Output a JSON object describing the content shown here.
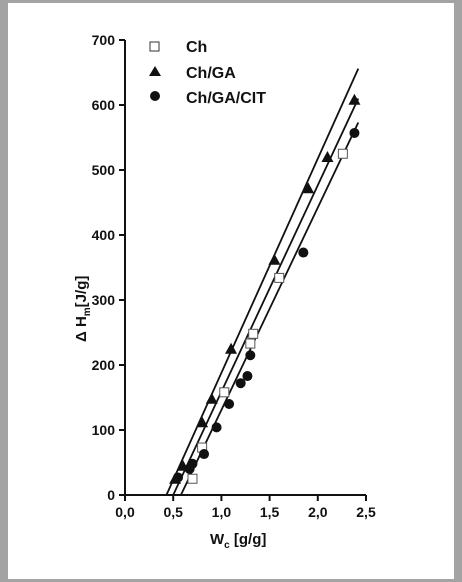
{
  "chart_data": {
    "type": "scatter",
    "xlabel": "W",
    "xlabel_sub": "c",
    "xlabel_unit": " [g/g]",
    "ylabel": "Δ H",
    "ylabel_sub": "m",
    "ylabel_unit": "[J/g]",
    "xlim": [
      0.0,
      2.5
    ],
    "ylim": [
      0,
      700
    ],
    "x_ticks": [
      0.0,
      0.5,
      1.0,
      1.5,
      2.0,
      2.5
    ],
    "x_tick_labels": [
      "0,0",
      "0,5",
      "1,0",
      "1,5",
      "2,0",
      "2,5"
    ],
    "y_ticks": [
      0,
      100,
      200,
      300,
      400,
      500,
      600,
      700
    ],
    "y_tick_labels": [
      "0",
      "100",
      "200",
      "300",
      "400",
      "500",
      "600",
      "700"
    ],
    "grid": false,
    "legend_position": "top-left",
    "series": [
      {
        "name": "Ch",
        "marker": "open-square",
        "points": [
          [
            0.7,
            25
          ],
          [
            0.8,
            73
          ],
          [
            1.03,
            158
          ],
          [
            1.3,
            233
          ],
          [
            1.33,
            248
          ],
          [
            1.6,
            334
          ],
          [
            2.26,
            525
          ]
        ],
        "fit_line": [
          [
            0.5,
            0
          ],
          [
            2.42,
            610
          ]
        ]
      },
      {
        "name": "Ch/GA",
        "marker": "filled-triangle",
        "points": [
          [
            0.52,
            25
          ],
          [
            0.6,
            45
          ],
          [
            0.8,
            112
          ],
          [
            0.9,
            148
          ],
          [
            1.1,
            225
          ],
          [
            1.55,
            362
          ],
          [
            1.9,
            472
          ],
          [
            2.1,
            520
          ],
          [
            2.38,
            608
          ]
        ],
        "fit_line": [
          [
            0.43,
            0
          ],
          [
            2.42,
            656
          ]
        ]
      },
      {
        "name": "Ch/GA/CIT",
        "marker": "filled-circle",
        "points": [
          [
            0.55,
            27
          ],
          [
            0.67,
            40
          ],
          [
            0.7,
            48
          ],
          [
            0.82,
            63
          ],
          [
            0.95,
            104
          ],
          [
            1.08,
            140
          ],
          [
            1.2,
            172
          ],
          [
            1.27,
            183
          ],
          [
            1.3,
            215
          ],
          [
            1.85,
            373
          ],
          [
            2.38,
            557
          ]
        ],
        "fit_line": [
          [
            0.58,
            0
          ],
          [
            2.42,
            573
          ]
        ]
      }
    ]
  }
}
